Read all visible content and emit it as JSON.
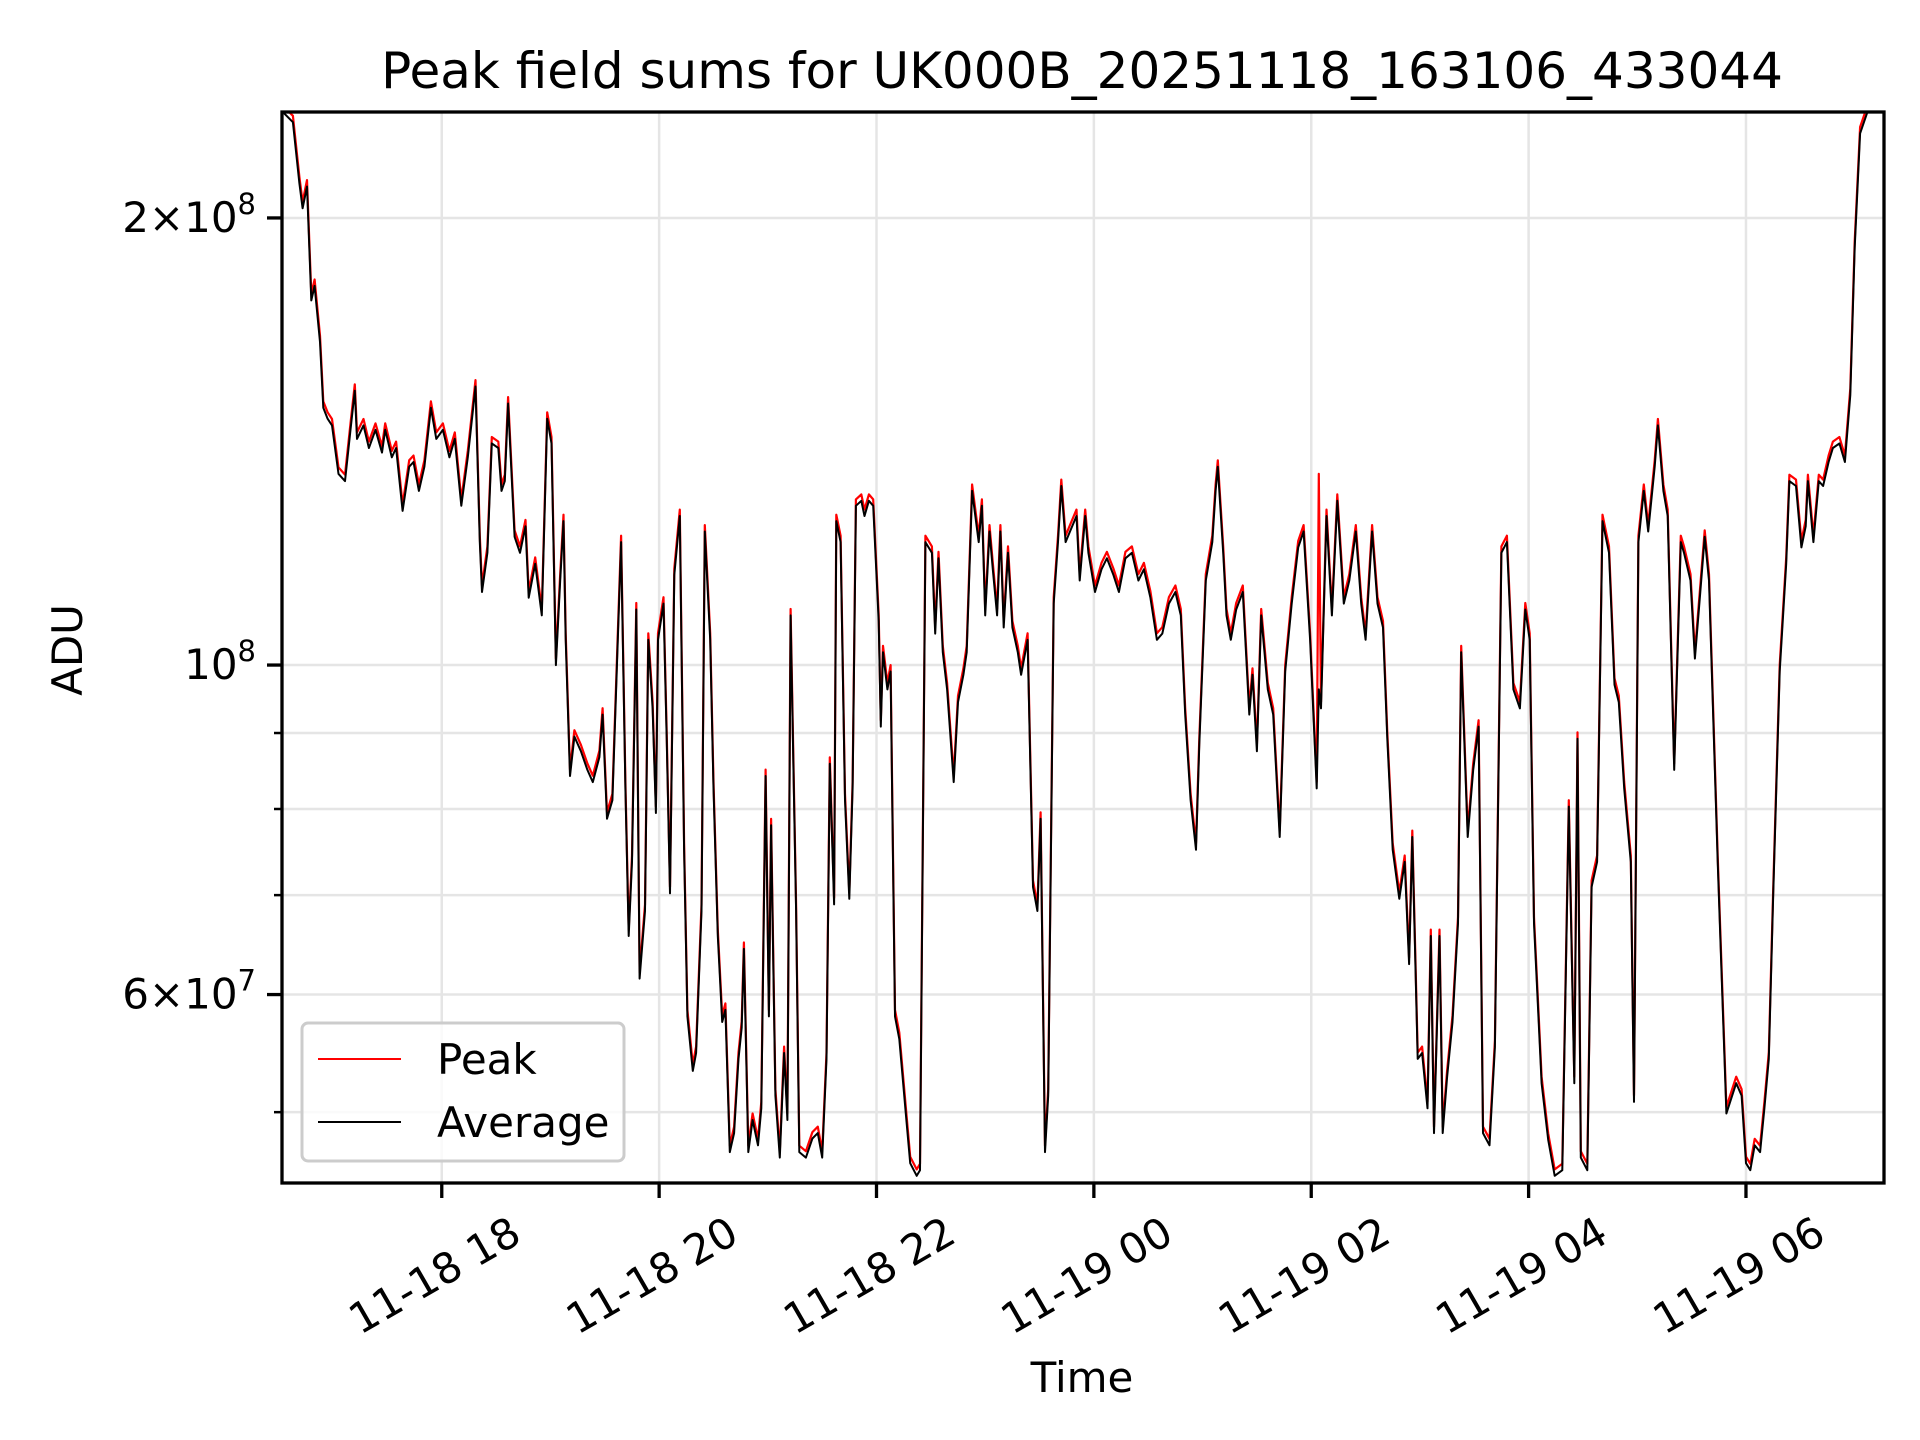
{
  "chart_data": {
    "type": "line",
    "title": "Peak field sums for UK000B_20251118_163106_433044",
    "xlabel": "Time",
    "ylabel": "ADU",
    "yscale": "log",
    "x_unit": "hours since 11-18 00:00",
    "y_unit_note": "values in millions of ADU",
    "xlim": [
      16.53,
      31.27
    ],
    "ylim_millions": [
      44.8,
      235.7
    ],
    "grid": true,
    "legend_position": "lower-left",
    "x_ticks": [
      {
        "value": 18,
        "label": "11-18 18"
      },
      {
        "value": 20,
        "label": "11-18 20"
      },
      {
        "value": 22,
        "label": "11-18 22"
      },
      {
        "value": 24,
        "label": "11-19 00"
      },
      {
        "value": 26,
        "label": "11-19 02"
      },
      {
        "value": 28,
        "label": "11-19 04"
      },
      {
        "value": 30,
        "label": "11-19 06"
      }
    ],
    "y_ticks": [
      {
        "value": 200,
        "base": "2×10",
        "exp": "8"
      },
      {
        "value": 100,
        "base": "10",
        "exp": "8"
      },
      {
        "value": 60,
        "base": "6×10",
        "exp": "7"
      }
    ],
    "y_minor_ticks": [
      50,
      70,
      80,
      90
    ],
    "series": [
      {
        "name": "Peak",
        "color": "#ff0000",
        "ratio_to_average": 1.01,
        "spikes": [
          [
            26.07,
            134.5
          ]
        ]
      },
      {
        "name": "Average",
        "color": "#000000"
      }
    ],
    "x": [
      16.53,
      16.63,
      16.69,
      16.72,
      16.76,
      16.8,
      16.83,
      16.88,
      16.91,
      16.95,
      16.99,
      17.05,
      17.11,
      17.16,
      17.2,
      17.22,
      17.28,
      17.33,
      17.39,
      17.45,
      17.48,
      17.54,
      17.58,
      17.64,
      17.7,
      17.74,
      17.79,
      17.84,
      17.9,
      17.95,
      18.01,
      18.07,
      18.12,
      18.18,
      18.24,
      18.31,
      18.35,
      18.37,
      18.42,
      18.46,
      18.52,
      18.55,
      18.58,
      18.61,
      18.67,
      18.72,
      18.77,
      18.8,
      18.86,
      18.92,
      18.97,
      19.01,
      19.05,
      19.09,
      19.12,
      19.14,
      19.18,
      19.22,
      19.28,
      19.34,
      19.39,
      19.45,
      19.48,
      19.52,
      19.57,
      19.62,
      19.65,
      19.69,
      19.72,
      19.75,
      19.79,
      19.82,
      19.87,
      19.9,
      19.94,
      19.97,
      19.99,
      20.04,
      20.07,
      20.1,
      20.14,
      20.19,
      20.23,
      20.26,
      20.31,
      20.34,
      20.39,
      20.42,
      20.47,
      20.5,
      20.54,
      20.58,
      20.61,
      20.65,
      20.69,
      20.73,
      20.76,
      20.78,
      20.82,
      20.86,
      20.91,
      20.94,
      20.98,
      21.01,
      21.03,
      21.07,
      21.11,
      21.15,
      21.18,
      21.21,
      21.26,
      21.29,
      21.35,
      21.41,
      21.46,
      21.5,
      21.54,
      21.57,
      21.61,
      21.63,
      21.67,
      21.71,
      21.75,
      21.78,
      21.81,
      21.86,
      21.89,
      21.93,
      21.97,
      22.02,
      22.04,
      22.06,
      22.1,
      22.13,
      22.17,
      22.21,
      22.27,
      22.31,
      22.37,
      22.4,
      22.45,
      22.51,
      22.54,
      22.57,
      22.61,
      22.65,
      22.71,
      22.75,
      22.8,
      22.83,
      22.88,
      22.94,
      22.97,
      23.0,
      23.04,
      23.07,
      23.11,
      23.14,
      23.17,
      23.21,
      23.25,
      23.3,
      23.33,
      23.39,
      23.44,
      23.48,
      23.51,
      23.55,
      23.58,
      23.63,
      23.67,
      23.7,
      23.74,
      23.78,
      23.84,
      23.87,
      23.92,
      23.95,
      24.01,
      24.07,
      24.12,
      24.18,
      24.23,
      24.29,
      24.35,
      24.41,
      24.46,
      24.52,
      24.58,
      24.63,
      24.69,
      24.75,
      24.8,
      24.84,
      24.89,
      24.94,
      24.97,
      25.03,
      25.09,
      25.12,
      25.14,
      25.19,
      25.22,
      25.26,
      25.31,
      25.37,
      25.43,
      25.46,
      25.5,
      25.54,
      25.6,
      25.65,
      25.71,
      25.76,
      25.82,
      25.88,
      25.93,
      25.99,
      26.05,
      26.07,
      26.09,
      26.14,
      26.19,
      26.24,
      26.3,
      26.35,
      26.41,
      26.46,
      26.5,
      26.56,
      26.61,
      26.66,
      26.7,
      26.75,
      26.81,
      26.86,
      26.9,
      26.93,
      26.98,
      27.02,
      27.07,
      27.1,
      27.13,
      27.18,
      27.21,
      27.25,
      27.3,
      27.35,
      27.38,
      27.44,
      27.49,
      27.54,
      27.58,
      27.64,
      27.69,
      27.75,
      27.8,
      27.86,
      27.92,
      27.97,
      28.01,
      28.05,
      28.12,
      28.18,
      28.24,
      28.31,
      28.37,
      28.42,
      28.45,
      28.48,
      28.54,
      28.58,
      28.63,
      28.68,
      28.74,
      28.79,
      28.83,
      28.88,
      28.94,
      28.97,
      29.01,
      29.06,
      29.1,
      29.16,
      29.19,
      29.24,
      29.28,
      29.34,
      29.4,
      29.43,
      29.49,
      29.53,
      29.58,
      29.62,
      29.66,
      29.74,
      29.82,
      29.91,
      29.96,
      30.0,
      30.04,
      30.08,
      30.13,
      30.17,
      30.21,
      30.25,
      30.31,
      30.37,
      30.4,
      30.46,
      30.51,
      30.55,
      30.57,
      30.62,
      30.67,
      30.71,
      30.76,
      30.8,
      30.86,
      30.91,
      30.96,
      31.0,
      31.05,
      31.12
    ],
    "average_millions": [
      236,
      232,
      211,
      203,
      210,
      176,
      180,
      165,
      149,
      146.5,
      145,
      134.5,
      133,
      144,
      153,
      142,
      145,
      140,
      144,
      139,
      144,
      138,
      140,
      127,
      136,
      137,
      131,
      136,
      149,
      142,
      144,
      138,
      142,
      128,
      138,
      154,
      121,
      112,
      119,
      141,
      140,
      131,
      133,
      150,
      122,
      119,
      124,
      111,
      117,
      108,
      146.5,
      141,
      100,
      114,
      125,
      104,
      84.2,
      89.5,
      87.5,
      85,
      83.4,
      86.7,
      92.6,
      78.8,
      81.1,
      104,
      121,
      82.6,
      65.7,
      73.7,
      109,
      61.5,
      68.3,
      104,
      93.5,
      79.5,
      104,
      110,
      89.2,
      70.2,
      115,
      126,
      75.1,
      58.0,
      53.3,
      54.8,
      68.3,
      123,
      104,
      82.6,
      65.7,
      57.5,
      58.6,
      47.0,
      48.4,
      54.3,
      57.0,
      64.4,
      47.0,
      49.4,
      47.5,
      50.3,
      84.2,
      58.0,
      78.0,
      51.3,
      46.6,
      54.8,
      49.4,
      108,
      68.3,
      47.0,
      46.6,
      48.0,
      48.4,
      46.6,
      54.3,
      85.8,
      69.0,
      125,
      121,
      81.1,
      69.6,
      82.6,
      128,
      129,
      126,
      129,
      128,
      107,
      90.9,
      102,
      96.3,
      99,
      58.0,
      56.0,
      49.9,
      46.2,
      45.3,
      45.7,
      121,
      119,
      105,
      118,
      102,
      96.3,
      83.4,
      94.4,
      98.5,
      102,
      131,
      121,
      128,
      108,
      123,
      116,
      108,
      123,
      106,
      119,
      106,
      102,
      98.5,
      104,
      70.9,
      68.3,
      78.8,
      47.0,
      51.3,
      110,
      121,
      132,
      121,
      123,
      126,
      114,
      126,
      119,
      112,
      116,
      118,
      115,
      112,
      118,
      119,
      114,
      116,
      111,
      104,
      105,
      110,
      112,
      108,
      92.6,
      81.1,
      75.1,
      88.4,
      114,
      121,
      131,
      136,
      119,
      108,
      104,
      109,
      112,
      92.6,
      98.5,
      87.5,
      108,
      96.3,
      92.6,
      76.6,
      99,
      110,
      120,
      123,
      104,
      82.6,
      96.3,
      93.5,
      126,
      108,
      129,
      110,
      114,
      123,
      110,
      104,
      123,
      110,
      106,
      89.2,
      75.1,
      69.6,
      73.7,
      62.9,
      76.6,
      54.3,
      54.8,
      50.3,
      65.7,
      48.4,
      65.7,
      48.4,
      52.8,
      57.5,
      67.0,
      102,
      76.6,
      85,
      90.9,
      48.4,
      47.5,
      55.3,
      119,
      121,
      96.3,
      93.5,
      109,
      104,
      67.0,
      52.3,
      47.9,
      45.3,
      45.7,
      80.3,
      52.3,
      89.2,
      46.6,
      45.7,
      70.9,
      73.7,
      125,
      119,
      97,
      94.4,
      82.6,
      73.7,
      50.8,
      121,
      131,
      123,
      136,
      145,
      131,
      126,
      85,
      121,
      119,
      114,
      101,
      112,
      122,
      114,
      73.7,
      49.9,
      52.3,
      51.3,
      46.2,
      45.7,
      47.5,
      47.0,
      50.3,
      54.3,
      69.6,
      99,
      117,
      133,
      132,
      120,
      124,
      133,
      121,
      133,
      132,
      137,
      140,
      141,
      137,
      152,
      191,
      228,
      236
    ]
  }
}
